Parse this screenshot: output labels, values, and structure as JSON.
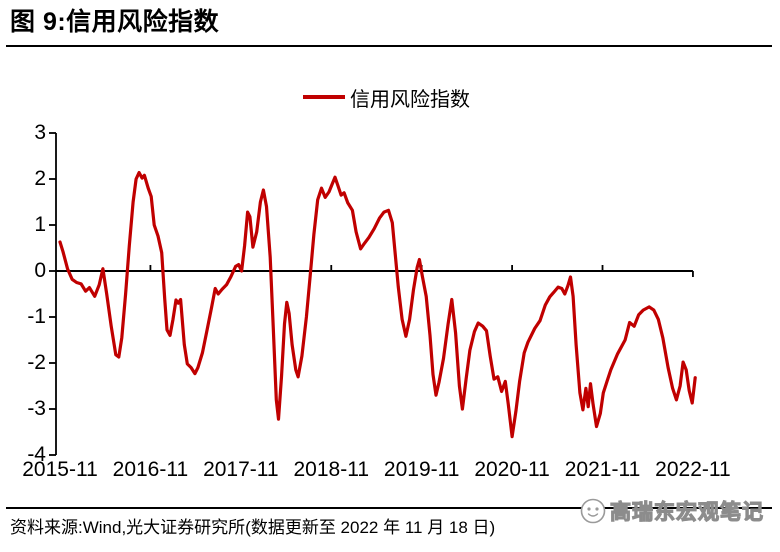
{
  "header": {
    "title": "图 9:信用风险指数"
  },
  "legend": {
    "label": "信用风险指数"
  },
  "footer": {
    "source": "资料来源:Wind,光大证券研究所(数据更新至 2022 年 11 月 18 日)",
    "watermark": "高瑞东宏观笔记"
  },
  "colors": {
    "line": "#C00000",
    "axis": "#000000",
    "watermark": "#8C8C8C"
  },
  "chart_data": {
    "type": "line",
    "title": "信用风险指数",
    "legend_position": "top-center",
    "grid": false,
    "xlabel": "",
    "ylabel": "",
    "ylim": [
      -4,
      3
    ],
    "x_range": [
      "2015-11",
      "2022-11"
    ],
    "x_tick_labels": [
      "2015-11",
      "2016-11",
      "2017-11",
      "2018-11",
      "2019-11",
      "2020-11",
      "2021-11",
      "2022-11"
    ],
    "y_tick_labels": [
      "3",
      "2",
      "1",
      "0",
      "-1",
      "-2",
      "-3",
      "-4"
    ],
    "series": [
      {
        "name": "信用风险指数",
        "color": "#C00000",
        "points_months_from_2015_11": [
          [
            0,
            0.63
          ],
          [
            0.4,
            0.42
          ],
          [
            1,
            0.05
          ],
          [
            1.6,
            -0.18
          ],
          [
            2.2,
            -0.25
          ],
          [
            2.8,
            -0.28
          ],
          [
            3.4,
            -0.44
          ],
          [
            3.9,
            -0.36
          ],
          [
            4.6,
            -0.55
          ],
          [
            5.2,
            -0.3
          ],
          [
            5.7,
            0.05
          ],
          [
            6.2,
            -0.5
          ],
          [
            6.8,
            -1.2
          ],
          [
            7.4,
            -1.82
          ],
          [
            7.8,
            -1.87
          ],
          [
            8.2,
            -1.45
          ],
          [
            8.7,
            -0.5
          ],
          [
            9.2,
            0.55
          ],
          [
            9.7,
            1.5
          ],
          [
            10.1,
            2.0
          ],
          [
            10.5,
            2.14
          ],
          [
            10.9,
            2.02
          ],
          [
            11.2,
            2.08
          ],
          [
            11.7,
            1.8
          ],
          [
            12.1,
            1.62
          ],
          [
            12.5,
            1.0
          ],
          [
            13,
            0.76
          ],
          [
            13.5,
            0.4
          ],
          [
            13.9,
            -0.6
          ],
          [
            14.2,
            -1.28
          ],
          [
            14.6,
            -1.4
          ],
          [
            15,
            -1.05
          ],
          [
            15.4,
            -0.63
          ],
          [
            15.7,
            -0.7
          ],
          [
            16,
            -0.62
          ],
          [
            16.5,
            -1.6
          ],
          [
            16.9,
            -2.02
          ],
          [
            17.4,
            -2.1
          ],
          [
            17.9,
            -2.23
          ],
          [
            18.3,
            -2.1
          ],
          [
            18.9,
            -1.78
          ],
          [
            19.5,
            -1.3
          ],
          [
            20.1,
            -0.8
          ],
          [
            20.6,
            -0.38
          ],
          [
            21,
            -0.5
          ],
          [
            21.5,
            -0.4
          ],
          [
            22.1,
            -0.3
          ],
          [
            22.7,
            -0.12
          ],
          [
            23.3,
            0.1
          ],
          [
            23.7,
            0.14
          ],
          [
            24.1,
            0.0
          ],
          [
            24.5,
            0.55
          ],
          [
            24.9,
            1.28
          ],
          [
            25.2,
            1.18
          ],
          [
            25.6,
            0.52
          ],
          [
            26.1,
            0.85
          ],
          [
            26.6,
            1.5
          ],
          [
            27,
            1.76
          ],
          [
            27.4,
            1.4
          ],
          [
            27.9,
            0.3
          ],
          [
            28.3,
            -1.2
          ],
          [
            28.7,
            -2.8
          ],
          [
            29,
            -3.22
          ],
          [
            29.4,
            -2.3
          ],
          [
            29.8,
            -1.15
          ],
          [
            30.1,
            -0.68
          ],
          [
            30.4,
            -0.92
          ],
          [
            30.8,
            -1.6
          ],
          [
            31.3,
            -2.15
          ],
          [
            31.6,
            -2.3
          ],
          [
            32.1,
            -1.85
          ],
          [
            32.7,
            -1.0
          ],
          [
            33.2,
            -0.1
          ],
          [
            33.7,
            0.8
          ],
          [
            34.2,
            1.55
          ],
          [
            34.7,
            1.8
          ],
          [
            35.2,
            1.6
          ],
          [
            35.7,
            1.72
          ],
          [
            36.1,
            1.88
          ],
          [
            36.5,
            2.04
          ],
          [
            36.9,
            1.85
          ],
          [
            37.3,
            1.65
          ],
          [
            37.7,
            1.7
          ],
          [
            38.2,
            1.48
          ],
          [
            38.8,
            1.32
          ],
          [
            39.3,
            0.85
          ],
          [
            39.9,
            0.48
          ],
          [
            40.4,
            0.6
          ],
          [
            41,
            0.73
          ],
          [
            41.7,
            0.92
          ],
          [
            42.4,
            1.15
          ],
          [
            43,
            1.28
          ],
          [
            43.6,
            1.32
          ],
          [
            44.1,
            1.05
          ],
          [
            44.5,
            0.35
          ],
          [
            44.9,
            -0.35
          ],
          [
            45.4,
            -1.05
          ],
          [
            45.9,
            -1.42
          ],
          [
            46.4,
            -1.05
          ],
          [
            46.9,
            -0.42
          ],
          [
            47.4,
            0.08
          ],
          [
            47.7,
            0.25
          ],
          [
            48.1,
            -0.12
          ],
          [
            48.6,
            -0.55
          ],
          [
            49.1,
            -1.4
          ],
          [
            49.5,
            -2.25
          ],
          [
            49.9,
            -2.7
          ],
          [
            50.3,
            -2.42
          ],
          [
            50.9,
            -1.9
          ],
          [
            51.5,
            -1.15
          ],
          [
            52,
            -0.62
          ],
          [
            52.5,
            -1.35
          ],
          [
            53,
            -2.5
          ],
          [
            53.4,
            -3.0
          ],
          [
            53.9,
            -2.35
          ],
          [
            54.4,
            -1.72
          ],
          [
            55,
            -1.32
          ],
          [
            55.5,
            -1.13
          ],
          [
            56.1,
            -1.2
          ],
          [
            56.6,
            -1.3
          ],
          [
            57.1,
            -1.85
          ],
          [
            57.6,
            -2.35
          ],
          [
            58.1,
            -2.3
          ],
          [
            58.6,
            -2.62
          ],
          [
            59.1,
            -2.4
          ],
          [
            59.5,
            -2.9
          ],
          [
            60,
            -3.6
          ],
          [
            60.5,
            -3.05
          ],
          [
            61,
            -2.4
          ],
          [
            61.6,
            -1.78
          ],
          [
            62.1,
            -1.55
          ],
          [
            63,
            -1.25
          ],
          [
            63.7,
            -1.08
          ],
          [
            64.4,
            -0.74
          ],
          [
            65,
            -0.56
          ],
          [
            65.5,
            -0.47
          ],
          [
            66.1,
            -0.35
          ],
          [
            66.6,
            -0.38
          ],
          [
            67,
            -0.5
          ],
          [
            67.4,
            -0.32
          ],
          [
            67.75,
            -0.13
          ],
          [
            68.1,
            -0.55
          ],
          [
            68.5,
            -1.6
          ],
          [
            69,
            -2.65
          ],
          [
            69.4,
            -3.02
          ],
          [
            69.8,
            -2.55
          ],
          [
            70.1,
            -2.95
          ],
          [
            70.4,
            -2.45
          ],
          [
            70.75,
            -2.9
          ],
          [
            71.2,
            -3.38
          ],
          [
            71.7,
            -3.1
          ],
          [
            72.1,
            -2.65
          ],
          [
            72.6,
            -2.4
          ],
          [
            73.1,
            -2.15
          ],
          [
            74,
            -1.8
          ],
          [
            75,
            -1.5
          ],
          [
            75.6,
            -1.12
          ],
          [
            76.2,
            -1.2
          ],
          [
            76.8,
            -0.95
          ],
          [
            77.4,
            -0.85
          ],
          [
            78.2,
            -0.78
          ],
          [
            78.8,
            -0.85
          ],
          [
            79.4,
            -1.05
          ],
          [
            80,
            -1.45
          ],
          [
            80.7,
            -2.1
          ],
          [
            81.3,
            -2.55
          ],
          [
            81.8,
            -2.8
          ],
          [
            82.3,
            -2.5
          ],
          [
            82.7,
            -1.98
          ],
          [
            83.1,
            -2.15
          ],
          [
            83.5,
            -2.6
          ],
          [
            83.9,
            -2.87
          ],
          [
            84.1,
            -2.6
          ],
          [
            84.3,
            -2.32
          ]
        ]
      }
    ]
  }
}
